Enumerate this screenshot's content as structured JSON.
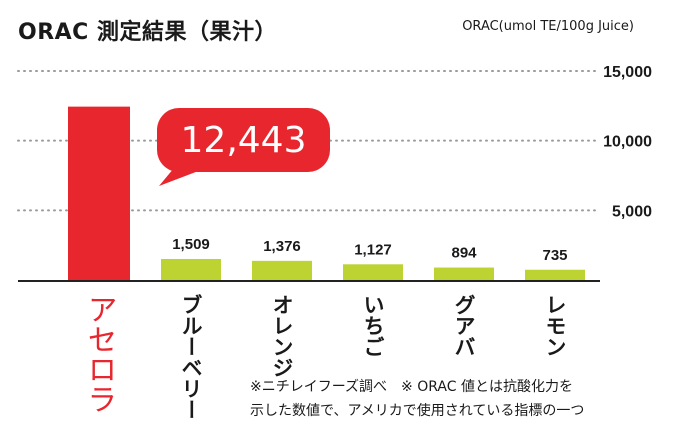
{
  "title": "ORAC 測定結果（果汁）",
  "unit_label": "ORAC(umol TE/100g Juice)",
  "notes": {
    "line1": "※ニチレイフーズ調べ　※ ORAC 値とは抗酸化力を",
    "line2": "示した数値で、アメリカで使用されている指標の一つ"
  },
  "colors": {
    "highlight_bar": "#e8262d",
    "bar": "#bdd332",
    "callout": "#e8262d",
    "callout_text": "#ffffff",
    "grid": "#9a9a9a",
    "text": "#1a1a1a"
  },
  "chart_data": {
    "type": "bar",
    "categories": [
      "アセロラ",
      "ブルーベリー",
      "オレンジ",
      "いちご",
      "グアバ",
      "レモン"
    ],
    "values": [
      12443,
      1509,
      1376,
      1127,
      894,
      735
    ],
    "value_labels": [
      "12,443",
      "1,509",
      "1,376",
      "1,127",
      "894",
      "735"
    ],
    "highlight_index": 0,
    "ylim": [
      0,
      15000
    ],
    "yticks": [
      5000,
      10000,
      15000
    ],
    "ytick_labels": [
      "5,000",
      "10,000",
      "15,000"
    ],
    "grid": "dotted horizontal",
    "xlabel": "",
    "ylabel": ""
  }
}
